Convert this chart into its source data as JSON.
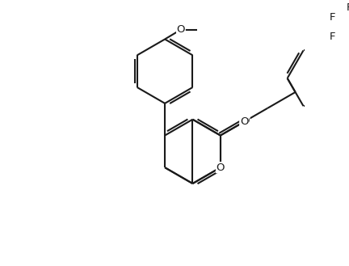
{
  "bg_color": "#ffffff",
  "line_color": "#1a1a1a",
  "lw": 1.5,
  "fs": 9.5,
  "figsize": [
    4.32,
    3.29
  ],
  "dpi": 100,
  "xlim": [
    -3.5,
    5.0
  ],
  "ylim": [
    -3.5,
    4.5
  ]
}
